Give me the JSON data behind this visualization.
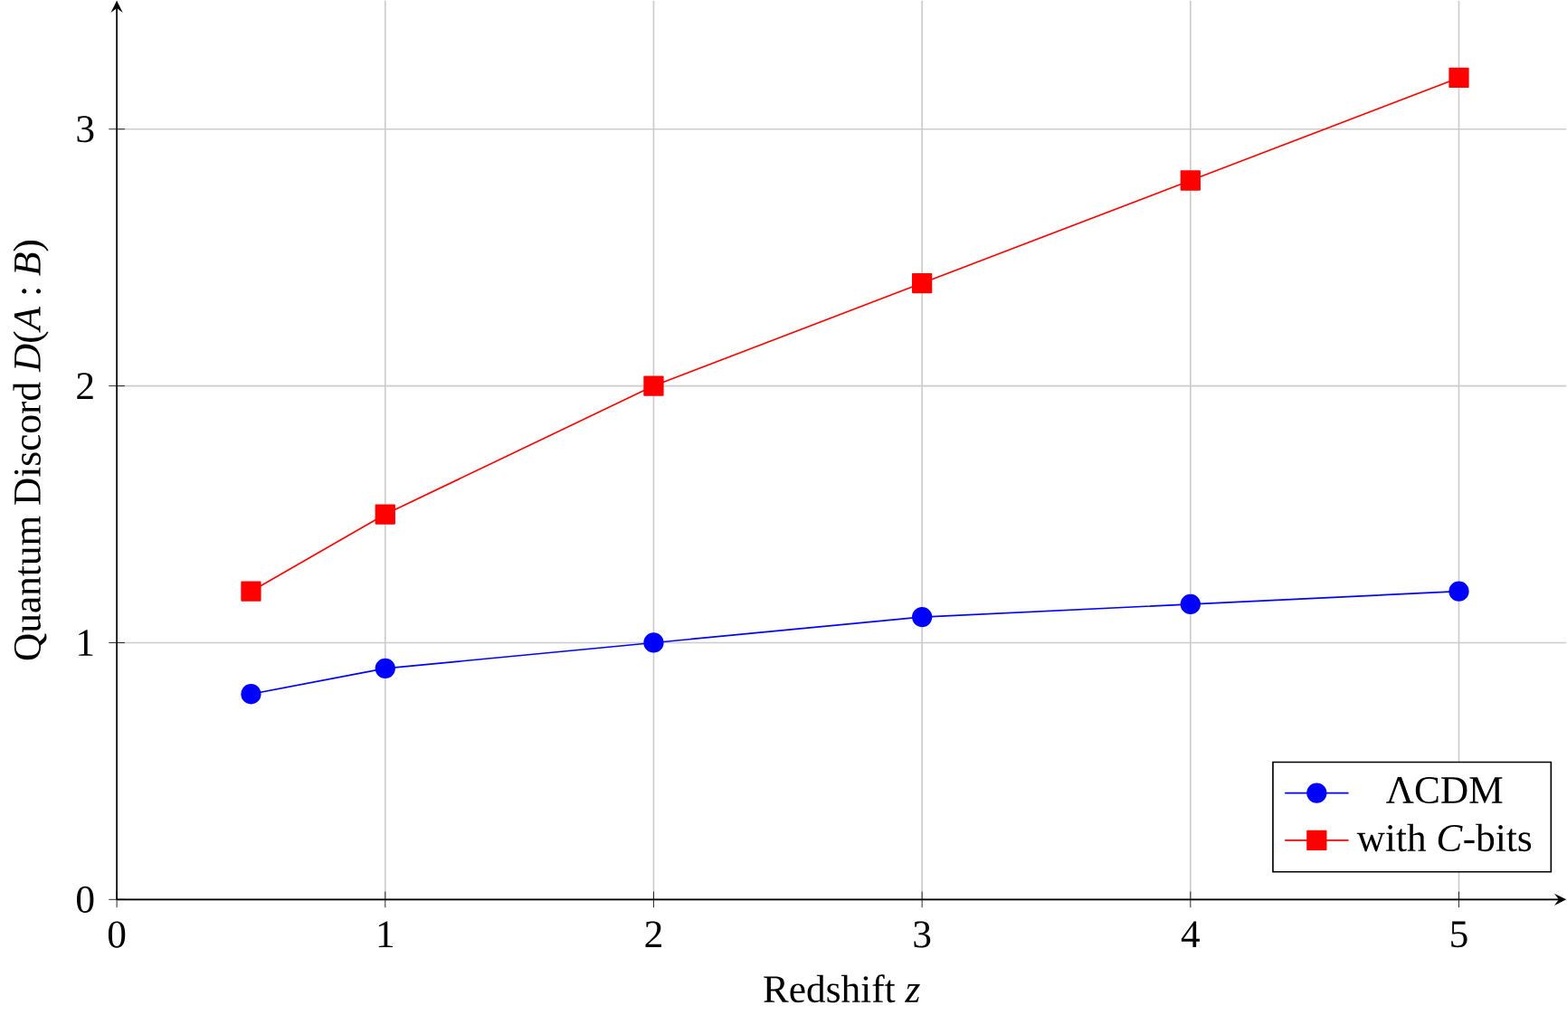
{
  "chart_data": {
    "type": "line",
    "xlabel": "Redshift *z*",
    "ylabel": "Quantum Discord *D*(*A* : *B*)",
    "x": [
      0.5,
      1,
      2,
      3,
      4,
      5
    ],
    "series": [
      {
        "name": "ΛCDM",
        "color": "#0000ff",
        "marker": "circle",
        "values": [
          0.8,
          0.9,
          1.0,
          1.1,
          1.15,
          1.2
        ]
      },
      {
        "name": "with *C*-bits",
        "color": "#ff0000",
        "marker": "square",
        "values": [
          1.2,
          1.5,
          2.0,
          2.4,
          2.8,
          3.2
        ]
      }
    ],
    "xlim": [
      0,
      5.4
    ],
    "ylim": [
      0,
      3.5
    ],
    "xticks": [
      0,
      1,
      2,
      3,
      4,
      5
    ],
    "yticks": [
      0,
      1,
      2,
      3
    ],
    "grid": true,
    "legend": "bottom right",
    "line_style": "solid"
  }
}
